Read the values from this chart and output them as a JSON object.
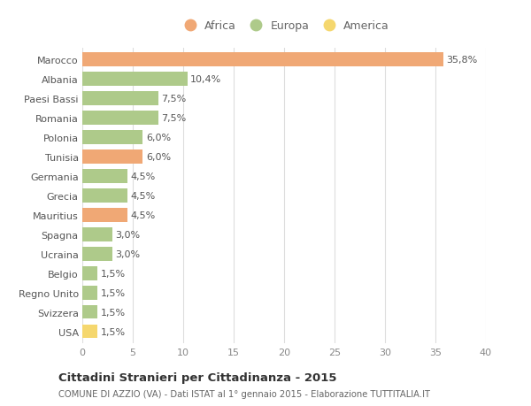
{
  "categories": [
    "Marocco",
    "Albania",
    "Paesi Bassi",
    "Romania",
    "Polonia",
    "Tunisia",
    "Germania",
    "Grecia",
    "Mauritius",
    "Spagna",
    "Ucraina",
    "Belgio",
    "Regno Unito",
    "Svizzera",
    "USA"
  ],
  "values": [
    35.8,
    10.4,
    7.5,
    7.5,
    6.0,
    6.0,
    4.5,
    4.5,
    4.5,
    3.0,
    3.0,
    1.5,
    1.5,
    1.5,
    1.5
  ],
  "labels": [
    "35,8%",
    "10,4%",
    "7,5%",
    "7,5%",
    "6,0%",
    "6,0%",
    "4,5%",
    "4,5%",
    "4,5%",
    "3,0%",
    "3,0%",
    "1,5%",
    "1,5%",
    "1,5%",
    "1,5%"
  ],
  "continents": [
    "Africa",
    "Europa",
    "Europa",
    "Europa",
    "Europa",
    "Africa",
    "Europa",
    "Europa",
    "Africa",
    "Europa",
    "Europa",
    "Europa",
    "Europa",
    "Europa",
    "America"
  ],
  "colors": {
    "Africa": "#F0A875",
    "Europa": "#AECA8A",
    "America": "#F5D76E"
  },
  "legend_labels": [
    "Africa",
    "Europa",
    "America"
  ],
  "legend_colors": [
    "#F0A875",
    "#AECA8A",
    "#F5D76E"
  ],
  "title": "Cittadini Stranieri per Cittadinanza - 2015",
  "subtitle": "COMUNE DI AZZIO (VA) - Dati ISTAT al 1° gennaio 2015 - Elaborazione TUTTITALIA.IT",
  "xlim": [
    0,
    40
  ],
  "xticks": [
    0,
    5,
    10,
    15,
    20,
    25,
    30,
    35,
    40
  ],
  "background_color": "#ffffff",
  "grid_color": "#dddddd",
  "bar_height": 0.72,
  "label_fontsize": 8,
  "ytick_fontsize": 8,
  "xtick_fontsize": 8
}
